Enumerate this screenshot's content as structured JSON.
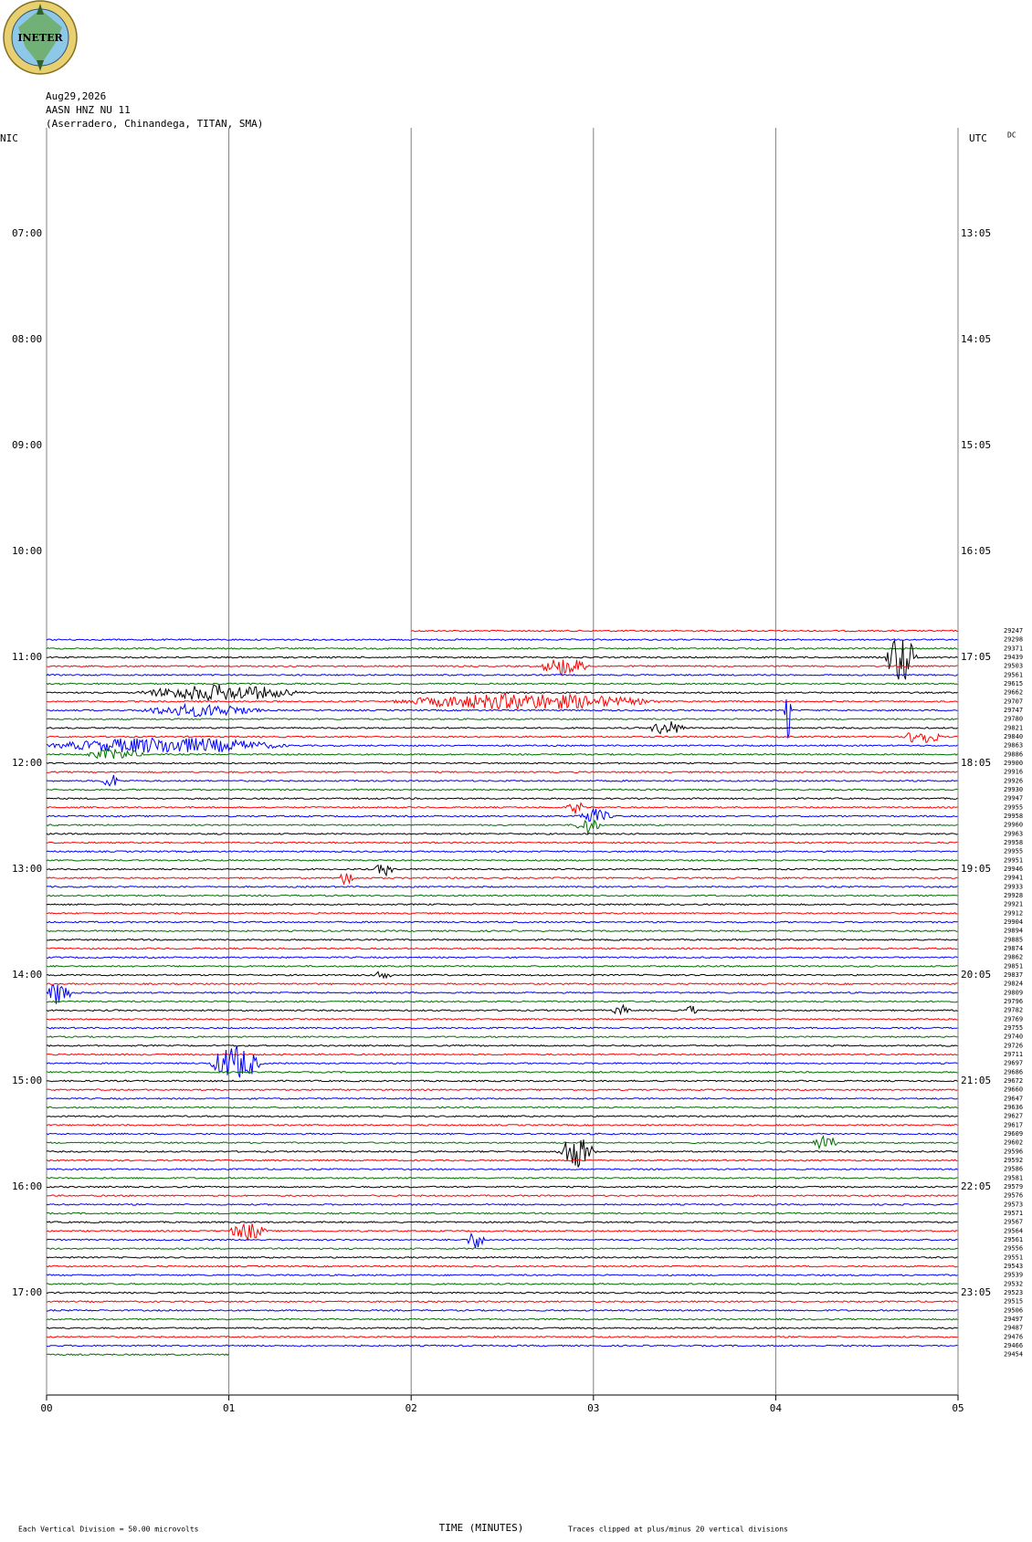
{
  "chart_data": {
    "type": "helicorder",
    "logo_text": "INETER",
    "title_lines": [
      "Aug29,2026",
      "AASN HNZ NU 11",
      "(Aserradero, Chinandega, TITAN, SMA)"
    ],
    "left_axis_title": "NIC",
    "right_axis_title": "UTC",
    "dc_label": "DC",
    "left_labels": [
      "07:00",
      "08:00",
      "09:00",
      "10:00",
      "11:00",
      "12:00",
      "13:00",
      "14:00",
      "15:00",
      "16:00",
      "17:00"
    ],
    "right_labels": [
      "13:05",
      "14:05",
      "15:05",
      "16:05",
      "17:05",
      "18:05",
      "19:05",
      "20:05",
      "21:05",
      "22:05",
      "23:05"
    ],
    "row_labels": [
      "29247",
      "29298",
      "29371",
      "29439",
      "29503",
      "29561",
      "29615",
      "29662",
      "29707",
      "29747",
      "29780",
      "29821",
      "29840",
      "29863",
      "29886",
      "29900",
      "29916",
      "29926",
      "29930",
      "29947",
      "29955",
      "29958",
      "29960",
      "29963",
      "29958",
      "29955",
      "29951",
      "29946",
      "29941",
      "29933",
      "29928",
      "29921",
      "29912",
      "29904",
      "29894",
      "29885",
      "29874",
      "29862",
      "29851",
      "29837",
      "29824",
      "29809",
      "29796",
      "29782",
      "29769",
      "29755",
      "29740",
      "29726",
      "29711",
      "29697",
      "29686",
      "29672",
      "29660",
      "29647",
      "29636",
      "29627",
      "29617",
      "29609",
      "29602",
      "29596",
      "29592",
      "29586",
      "29581",
      "29579",
      "29576",
      "29573",
      "29571",
      "29567",
      "29564",
      "29561",
      "29556",
      "29551",
      "29543",
      "29539",
      "29532",
      "29523",
      "29515",
      "29506",
      "29497",
      "29487",
      "29476",
      "29466",
      "29454"
    ],
    "trace_colors": [
      "#ff0000",
      "#0000ff",
      "#007000",
      "#000000"
    ],
    "xlim": [
      0,
      5
    ],
    "xticks": [
      {
        "value": 0,
        "label": "00"
      },
      {
        "value": 1,
        "label": "01"
      },
      {
        "value": 2,
        "label": "02"
      },
      {
        "value": 3,
        "label": "03"
      },
      {
        "value": 4,
        "label": "04"
      },
      {
        "value": 5,
        "label": "05"
      }
    ],
    "x_label": "TIME (MINUTES)",
    "scale_note": "Each Vertical Division =   50.00 microvolts",
    "clip_note": "Traces clipped at plus/minus 20 vertical divisions"
  }
}
